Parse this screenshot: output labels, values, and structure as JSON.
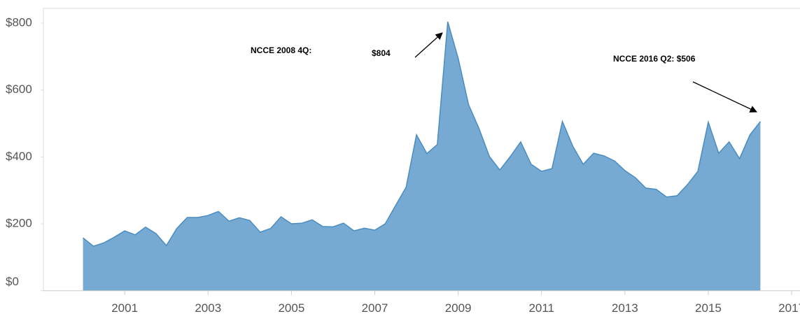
{
  "chart_data": {
    "type": "area",
    "x": [
      2000,
      2000.25,
      2000.5,
      2000.75,
      2001,
      2001.25,
      2001.5,
      2001.75,
      2002,
      2002.25,
      2002.5,
      2002.75,
      2003,
      2003.25,
      2003.5,
      2003.75,
      2004,
      2004.25,
      2004.5,
      2004.75,
      2005,
      2005.25,
      2005.5,
      2005.75,
      2006,
      2006.25,
      2006.5,
      2006.75,
      2007,
      2007.25,
      2007.5,
      2007.75,
      2008,
      2008.25,
      2008.5,
      2008.75,
      2009,
      2009.25,
      2009.5,
      2009.75,
      2010,
      2010.25,
      2010.5,
      2010.75,
      2011,
      2011.25,
      2011.5,
      2011.75,
      2012,
      2012.25,
      2012.5,
      2012.75,
      2013,
      2013.25,
      2013.5,
      2013.75,
      2014,
      2014.25,
      2014.5,
      2014.75,
      2015,
      2015.25,
      2015.5,
      2015.75,
      2016,
      2016.25
    ],
    "values": [
      158,
      133,
      143,
      160,
      179,
      167,
      190,
      171,
      135,
      186,
      219,
      219,
      225,
      237,
      208,
      218,
      210,
      175,
      186,
      221,
      200,
      202,
      212,
      192,
      191,
      202,
      179,
      187,
      181,
      200,
      255,
      309,
      466,
      410,
      437,
      804,
      695,
      556,
      485,
      401,
      361,
      401,
      445,
      378,
      357,
      365,
      506,
      432,
      378,
      411,
      403,
      388,
      359,
      338,
      307,
      303,
      280,
      284,
      317,
      357,
      504,
      411,
      445,
      395,
      466,
      506
    ],
    "color": "#76aad2",
    "line_color": "#4a8cc2",
    "xlim": [
      1999.05,
      2017.2
    ],
    "xticks": [
      2001,
      2003,
      2005,
      2007,
      2009,
      2011,
      2013,
      2015,
      2017
    ],
    "ylim": [
      0,
      844
    ],
    "yticks": [
      {
        "value": 0,
        "label": "$0"
      },
      {
        "value": 200,
        "label": "$200"
      },
      {
        "value": 400,
        "label": "$400"
      },
      {
        "value": 600,
        "label": "$600"
      },
      {
        "value": 800,
        "label": "$800"
      }
    ],
    "annotations": [
      "NCCE 2008 4Q:",
      "$804",
      "NCCE 2016 Q2: $506"
    ]
  }
}
